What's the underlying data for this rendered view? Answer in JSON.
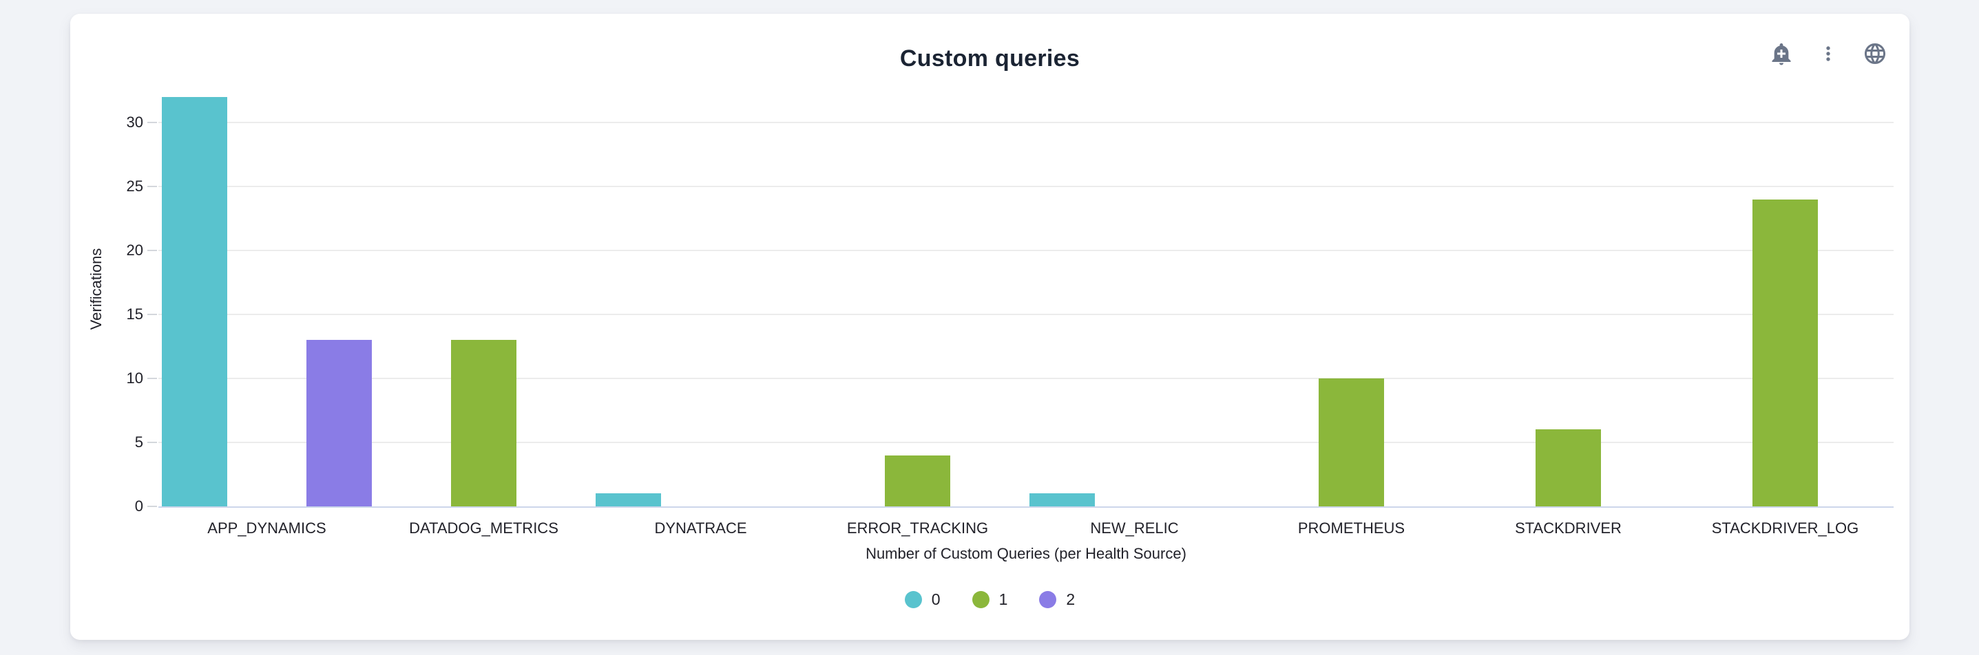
{
  "panel": {
    "title": "Custom queries",
    "toolbar": {
      "icons": [
        {
          "name": "add-alert-bell-icon"
        },
        {
          "name": "kebab-menu-icon"
        },
        {
          "name": "globe-icon"
        }
      ]
    }
  },
  "colors": {
    "series_0": "#59C3CE",
    "series_1": "#8BB73B",
    "series_2": "#8A7CE6",
    "title_text": "#1B2433",
    "axis_text": "#22222A",
    "icon": "#6B7588",
    "gridline": "#ECECEC",
    "axis_line": "#CCD6EB",
    "card_bg": "#FFFFFF",
    "page_bg": "#F1F3F7"
  },
  "chart_data": {
    "type": "bar",
    "title": "Custom queries",
    "categories": [
      "APP_DYNAMICS",
      "DATADOG_METRICS",
      "DYNATRACE",
      "ERROR_TRACKING",
      "NEW_RELIC",
      "PROMETHEUS",
      "STACKDRIVER",
      "STACKDRIVER_LOG"
    ],
    "series": [
      {
        "name": "0",
        "color": "#59C3CE",
        "values": [
          32,
          0,
          1,
          0,
          1,
          0,
          0,
          0
        ]
      },
      {
        "name": "1",
        "color": "#8BB73B",
        "values": [
          0,
          13,
          0,
          4,
          0,
          10,
          6,
          24
        ]
      },
      {
        "name": "2",
        "color": "#8A7CE6",
        "values": [
          13,
          0,
          0,
          0,
          0,
          0,
          0,
          0
        ]
      }
    ],
    "xlabel": "Number of Custom Queries (per Health Source)",
    "ylabel": "Verifications",
    "yticks": [
      0,
      5,
      10,
      15,
      20,
      25,
      30
    ],
    "ylim": [
      0,
      32
    ],
    "grid": true,
    "legend_position": "bottom"
  }
}
